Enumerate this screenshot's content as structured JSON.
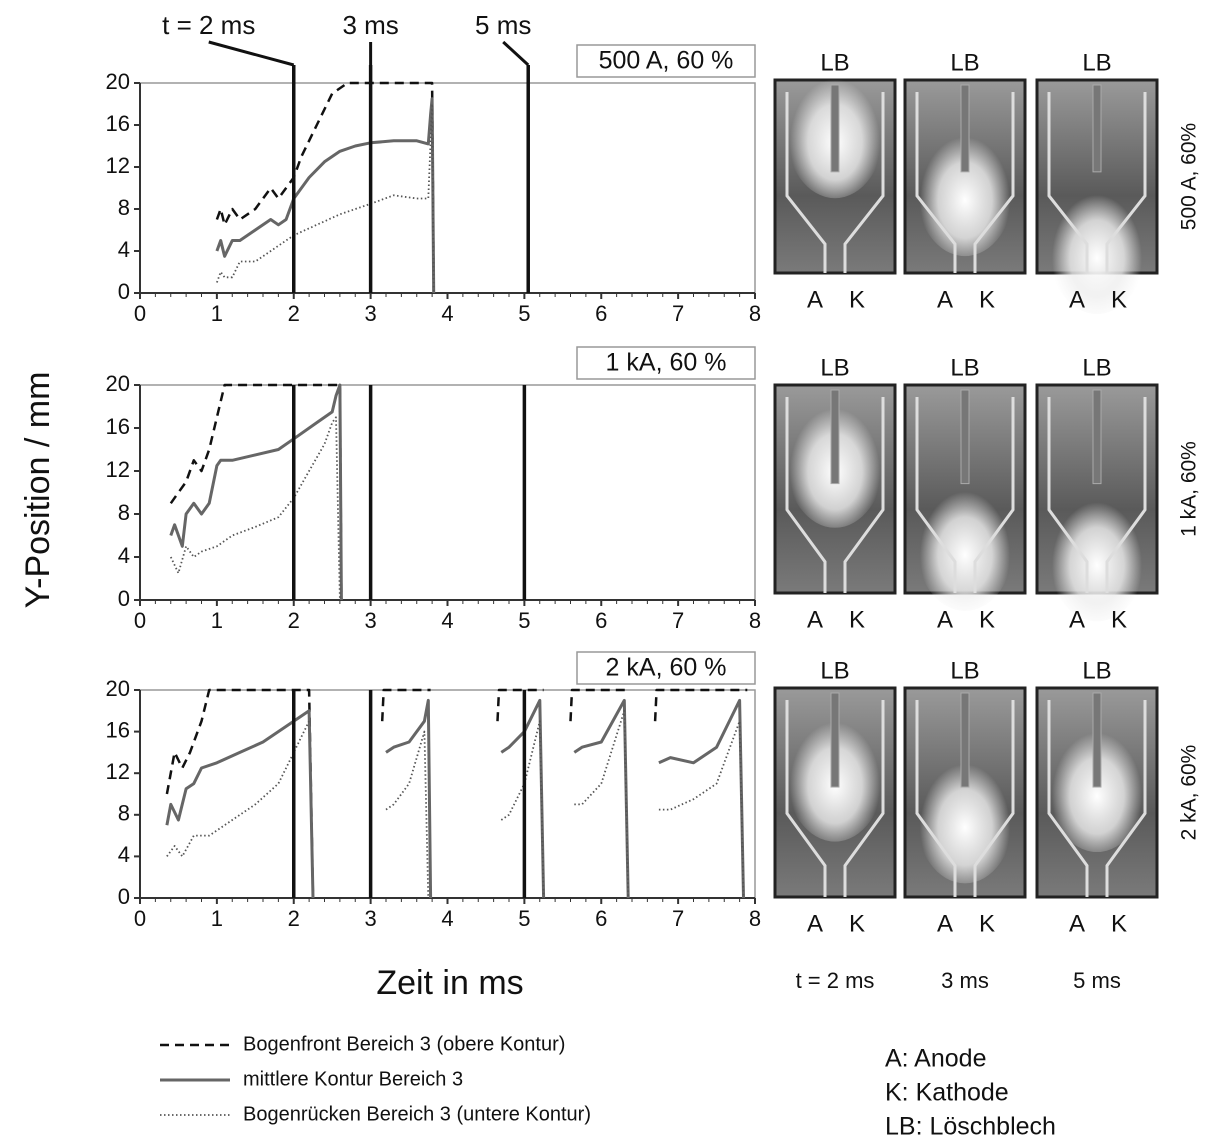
{
  "figure": {
    "ylabel": "Y-Position / mm",
    "xlabel": "Zeit in ms"
  },
  "chart_data": [
    {
      "type": "line",
      "annotation": "500 A, 60 %",
      "xlim": [
        0,
        8
      ],
      "xticks": [
        0,
        1,
        2,
        3,
        4,
        5,
        6,
        7,
        8
      ],
      "ylim": [
        0,
        20
      ],
      "yticks": [
        0,
        4,
        8,
        12,
        16,
        20
      ],
      "markers": [
        {
          "value": 2,
          "label": "t = 2 ms"
        },
        {
          "value": 3,
          "label": "3 ms"
        },
        {
          "value": 5.05,
          "label": "5 ms"
        }
      ],
      "series": [
        {
          "name": "Bogenfront Bereich 3 (obere Kontur)",
          "color": "#111111",
          "style": "dashed",
          "x": [
            1.0,
            1.05,
            1.1,
            1.2,
            1.3,
            1.5,
            1.7,
            1.8,
            1.9,
            2.0,
            2.1,
            2.3,
            2.5,
            2.7,
            3.0,
            3.5,
            3.8,
            3.82
          ],
          "values": [
            7,
            8,
            6.5,
            8,
            7,
            8,
            10,
            9,
            10,
            11,
            13,
            16,
            19,
            20,
            20,
            20,
            20,
            0
          ]
        },
        {
          "name": "mittlere Kontur Bereich 3",
          "color": "#666666",
          "style": "solid",
          "x": [
            1.0,
            1.05,
            1.1,
            1.2,
            1.3,
            1.5,
            1.7,
            1.8,
            1.9,
            2.0,
            2.2,
            2.4,
            2.6,
            2.8,
            3.0,
            3.3,
            3.6,
            3.75,
            3.78,
            3.8,
            3.82
          ],
          "values": [
            4,
            5,
            3.5,
            5,
            5,
            6,
            7,
            6.5,
            7,
            9,
            11,
            12.5,
            13.5,
            14,
            14.3,
            14.5,
            14.5,
            14.2,
            17,
            18.5,
            0
          ]
        },
        {
          "name": "Bogenrücken Bereich 3 (untere Kontur)",
          "color": "#555555",
          "style": "dotted",
          "x": [
            1.0,
            1.05,
            1.1,
            1.2,
            1.3,
            1.5,
            1.7,
            1.9,
            2.0,
            2.3,
            2.6,
            3.0,
            3.3,
            3.6,
            3.75,
            3.8,
            3.82
          ],
          "values": [
            1,
            2,
            1.5,
            1.5,
            3,
            3,
            4,
            5,
            5.5,
            6.5,
            7.5,
            8.5,
            9.3,
            9,
            9,
            18,
            0
          ]
        }
      ]
    },
    {
      "type": "line",
      "annotation": "1 kA, 60 %",
      "xlim": [
        0,
        8
      ],
      "xticks": [
        0,
        1,
        2,
        3,
        4,
        5,
        6,
        7,
        8
      ],
      "ylim": [
        0,
        20
      ],
      "yticks": [
        0,
        4,
        8,
        12,
        16,
        20
      ],
      "markers": [
        2,
        3,
        5
      ],
      "series": [
        {
          "name": "Bogenfront Bereich 3 (obere Kontur)",
          "color": "#111111",
          "style": "dashed",
          "x": [
            0.4,
            0.5,
            0.6,
            0.7,
            0.8,
            0.9,
            1.0,
            1.1,
            2.6,
            2.62
          ],
          "values": [
            9,
            10,
            11,
            13,
            12,
            14,
            17,
            20,
            20,
            0
          ]
        },
        {
          "name": "mittlere Kontur Bereich 3",
          "color": "#666666",
          "style": "solid",
          "x": [
            0.4,
            0.45,
            0.55,
            0.6,
            0.7,
            0.8,
            0.9,
            1.0,
            1.05,
            1.2,
            1.5,
            1.8,
            2.0,
            2.3,
            2.5,
            2.55,
            2.6,
            2.62
          ],
          "values": [
            6,
            7,
            5,
            8,
            9,
            8,
            9,
            12.5,
            13,
            13,
            13.5,
            14,
            15,
            16.5,
            17.5,
            19,
            20,
            0
          ]
        },
        {
          "name": "Bogenrücken Bereich 3 (untere Kontur)",
          "color": "#555555",
          "style": "dotted",
          "x": [
            0.4,
            0.5,
            0.6,
            0.7,
            0.8,
            1.0,
            1.2,
            1.5,
            1.8,
            2.0,
            2.2,
            2.4,
            2.5,
            2.55,
            2.6
          ],
          "values": [
            4,
            2.5,
            5,
            4,
            4.5,
            5,
            6,
            6.8,
            7.7,
            9.5,
            12,
            14.5,
            16.5,
            17,
            0
          ]
        }
      ]
    },
    {
      "type": "line",
      "annotation": "2 kA, 60 %",
      "xlim": [
        0,
        8
      ],
      "xticks": [
        0,
        1,
        2,
        3,
        4,
        5,
        6,
        7,
        8
      ],
      "ylim": [
        0,
        20
      ],
      "yticks": [
        0,
        4,
        8,
        12,
        16,
        20
      ],
      "markers": [
        2,
        3,
        5
      ],
      "series": [
        {
          "name": "Bogenfront Bereich 3 (obere Kontur)",
          "color": "#111111",
          "style": "dashed",
          "x": [
            0.35,
            0.45,
            0.55,
            0.65,
            0.8,
            0.9,
            2.2,
            2.25,
            null,
            3.15,
            3.17,
            3.78,
            null,
            4.65,
            4.67,
            5.25,
            null,
            5.6,
            5.62,
            6.35,
            null,
            6.7,
            6.72,
            7.9
          ],
          "values": [
            10,
            14,
            12.5,
            14,
            17,
            20,
            20,
            0,
            null,
            17,
            20,
            20,
            null,
            17,
            20,
            20,
            null,
            17,
            20,
            20,
            null,
            17,
            20,
            20
          ]
        },
        {
          "name": "mittlere Kontur Bereich 3",
          "color": "#666666",
          "style": "solid",
          "x": [
            0.35,
            0.4,
            0.5,
            0.6,
            0.7,
            0.8,
            1.0,
            1.3,
            1.6,
            1.9,
            2.1,
            2.2,
            2.25,
            null,
            3.2,
            3.3,
            3.5,
            3.7,
            3.75,
            3.78,
            null,
            4.7,
            4.8,
            5.0,
            5.2,
            5.25,
            null,
            5.65,
            5.75,
            6.0,
            6.3,
            6.35,
            null,
            6.75,
            6.9,
            7.2,
            7.5,
            7.8,
            7.85
          ],
          "values": [
            7,
            9,
            7.5,
            10.5,
            11,
            12.5,
            13,
            14,
            15,
            16.5,
            17.5,
            18,
            0,
            null,
            14,
            14.5,
            15,
            17,
            19,
            0,
            null,
            14,
            14.5,
            16,
            19,
            0,
            null,
            14,
            14.5,
            15,
            19,
            0,
            null,
            13,
            13.5,
            13,
            14.5,
            19,
            0
          ]
        },
        {
          "name": "Bogenrücken Bereich 3 (untere Kontur)",
          "color": "#555555",
          "style": "dotted",
          "x": [
            0.35,
            0.45,
            0.55,
            0.7,
            0.9,
            1.1,
            1.5,
            1.8,
            2.0,
            2.1,
            2.2,
            null,
            3.2,
            3.3,
            3.5,
            3.7,
            3.75,
            null,
            4.7,
            4.8,
            5.0,
            5.2,
            5.25,
            null,
            5.65,
            5.75,
            6.0,
            6.3,
            6.35,
            null,
            6.75,
            6.9,
            7.2,
            7.5,
            7.8,
            7.85
          ],
          "values": [
            4,
            5,
            4,
            6,
            6,
            7,
            9,
            11,
            14,
            15.5,
            17,
            null,
            8.5,
            9,
            11,
            16,
            0,
            null,
            7.5,
            8,
            11,
            17,
            0,
            null,
            9,
            9,
            11,
            18,
            0,
            null,
            8.5,
            8.5,
            9.5,
            11,
            17,
            0
          ]
        }
      ]
    }
  ],
  "photos": {
    "rows": [
      {
        "label": "500 A, 60%",
        "panels": [
          {
            "top": "LB",
            "left": "A",
            "right": "K"
          },
          {
            "top": "LB",
            "left": "A",
            "right": "K"
          },
          {
            "top": "LB",
            "left": "A",
            "right": "K"
          }
        ]
      },
      {
        "label": "1 kA, 60%",
        "panels": [
          {
            "top": "LB",
            "left": "A",
            "right": "K"
          },
          {
            "top": "LB",
            "left": "A",
            "right": "K"
          },
          {
            "top": "LB",
            "left": "A",
            "right": "K"
          }
        ]
      },
      {
        "label": "2 kA, 60%",
        "panels": [
          {
            "top": "LB",
            "left": "A",
            "right": "K"
          },
          {
            "top": "LB",
            "left": "A",
            "right": "K"
          },
          {
            "top": "LB",
            "left": "A",
            "right": "K"
          }
        ]
      }
    ],
    "columns": [
      "t = 2 ms",
      "3 ms",
      "5 ms"
    ],
    "key": [
      "A: Anode",
      "K: Kathode",
      "LB: Löschblech"
    ]
  }
}
